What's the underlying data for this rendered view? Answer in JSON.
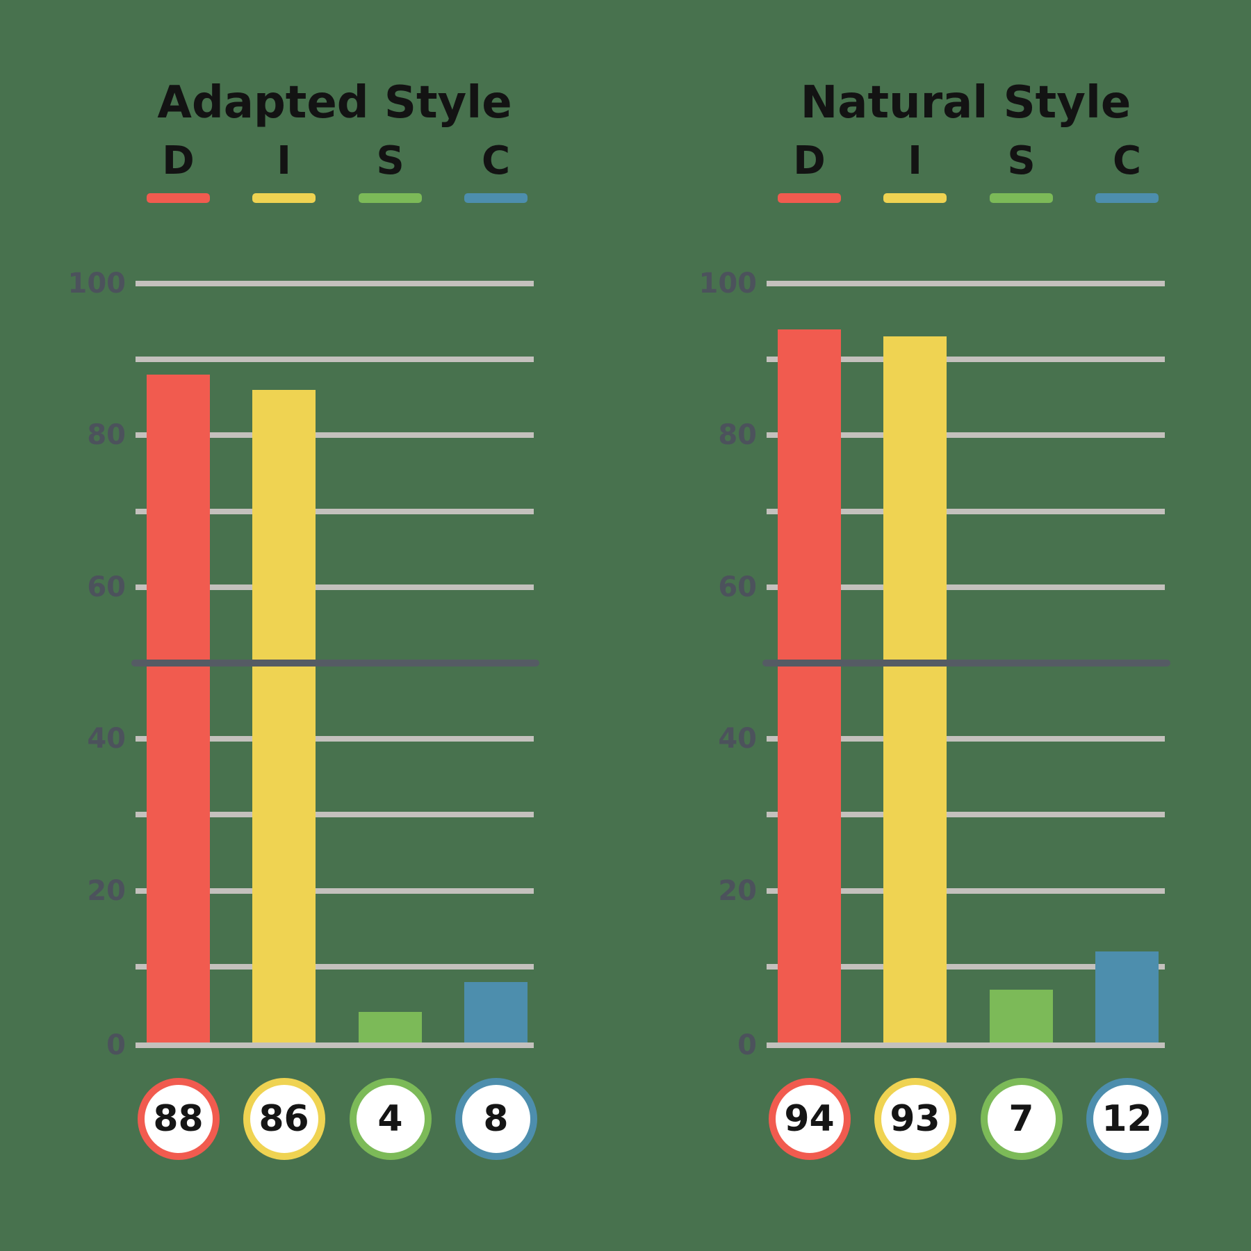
{
  "page": {
    "background_color": "#48724E"
  },
  "colors": {
    "bar_red_D": "#F15B4F",
    "bar_yellow_I": "#EFD352",
    "bar_green_S": "#7CBA58",
    "bar_blue_C": "#4D8EAD",
    "gridline": "#C4C1BD",
    "midline": "#555B64",
    "tick_label": "#4C525C",
    "title_text": "#131313",
    "score_circle_fill": "#FFFFFF"
  },
  "chart_data": [
    {
      "type": "bar",
      "title": "Adapted Style",
      "categories": [
        "D",
        "I",
        "S",
        "C"
      ],
      "values": [
        88,
        86,
        4,
        8
      ],
      "bar_colors": [
        "#F15B4F",
        "#EFD352",
        "#7CBA58",
        "#4D8EAD"
      ],
      "ylim": [
        0,
        100
      ],
      "gridline_step": 10,
      "yticks_labeled": [
        0,
        20,
        40,
        60,
        80,
        100
      ],
      "reference_line": 50,
      "grid": true,
      "legend_position": "top",
      "score_badges": [
        "88",
        "86",
        "4",
        "8"
      ]
    },
    {
      "type": "bar",
      "title": "Natural Style",
      "categories": [
        "D",
        "I",
        "S",
        "C"
      ],
      "values": [
        94,
        93,
        7,
        12
      ],
      "bar_colors": [
        "#F15B4F",
        "#EFD352",
        "#7CBA58",
        "#4D8EAD"
      ],
      "ylim": [
        0,
        100
      ],
      "gridline_step": 10,
      "yticks_labeled": [
        0,
        20,
        40,
        60,
        80,
        100
      ],
      "reference_line": 50,
      "grid": true,
      "legend_position": "top",
      "score_badges": [
        "94",
        "93",
        "7",
        "12"
      ]
    }
  ]
}
